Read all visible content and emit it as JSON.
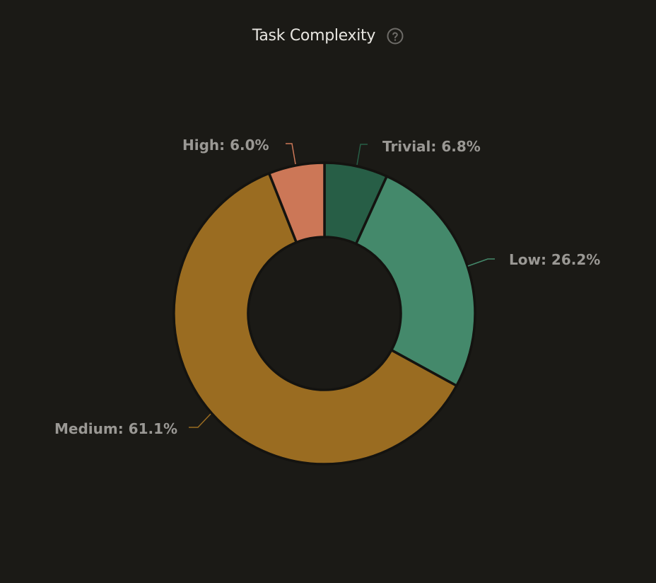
{
  "header": {
    "title": "Task Complexity",
    "help_icon": "question-circle-icon"
  },
  "colors": {
    "background": "#1b1a16",
    "trivial": "#275e46",
    "low": "#44896b",
    "medium": "#9a6c21",
    "high": "#cc7757",
    "label": "#9a9894"
  },
  "labels": {
    "trivial": "Trivial: 6.8%",
    "low": "Low: 26.2%",
    "medium": "Medium: 61.1%",
    "high": "High: 6.0%"
  },
  "chart_data": {
    "type": "pie",
    "subtype": "donut",
    "title": "Task Complexity",
    "categories": [
      "Trivial",
      "Low",
      "Medium",
      "High"
    ],
    "values": [
      6.8,
      26.2,
      61.1,
      6.0
    ],
    "unit": "%",
    "colors": [
      "#275e46",
      "#44896b",
      "#9a6c21",
      "#cc7757"
    ],
    "start_angle": "12 o'clock, clockwise",
    "legend": "none (outside labels with leader lines)"
  }
}
